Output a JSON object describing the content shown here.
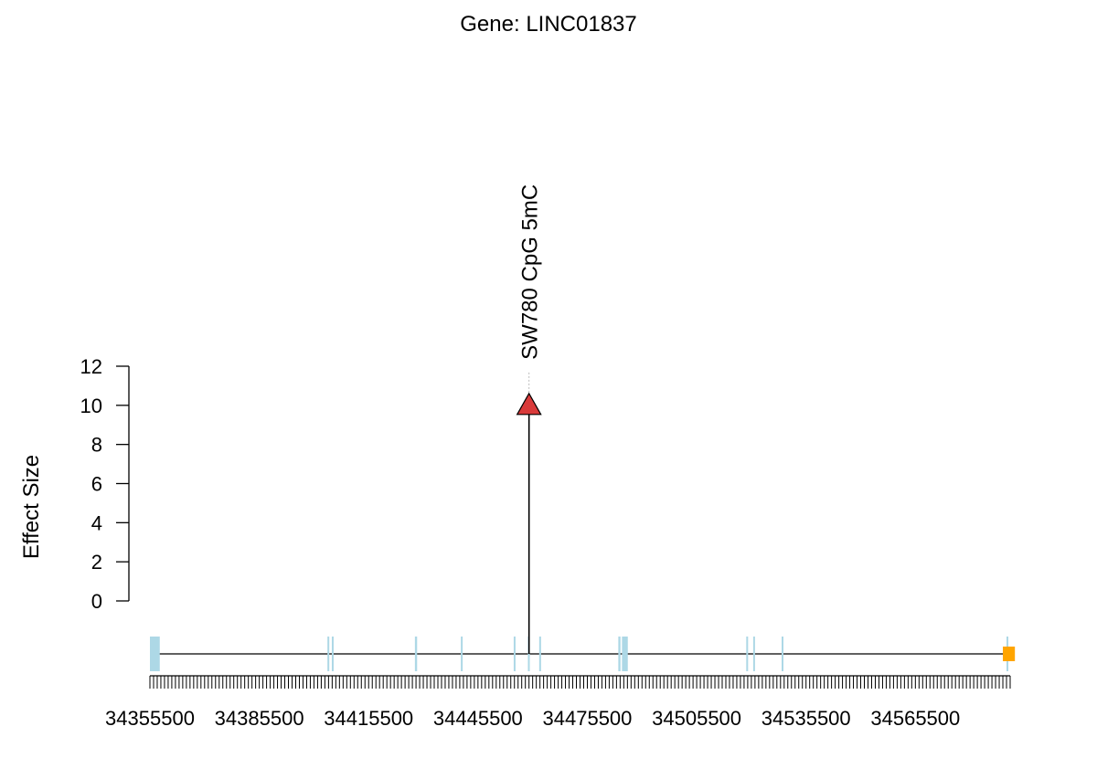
{
  "chart_data": {
    "type": "lollipop",
    "title": "Gene: LINC01837",
    "ylabel": "Effect Size",
    "xlabel": "",
    "ylim": [
      0,
      12
    ],
    "y_ticks": [
      0,
      2,
      4,
      6,
      8,
      10,
      12
    ],
    "xlim": [
      34355500,
      34591500
    ],
    "x_tick_labels": [
      34355500,
      34385500,
      34415500,
      34445500,
      34475500,
      34505500,
      34535500,
      34565500
    ],
    "minor_tick_step": 1000,
    "points": [
      {
        "x": 34459500,
        "y": 10,
        "label": "SW780 CpG 5mC",
        "marker": "triangle",
        "color": "#d93a3a"
      }
    ],
    "gene_track": {
      "start": 34355500,
      "end": 34591500,
      "exon_color": "#add8e6",
      "highlight_color": "#ffa500",
      "exons": [
        {
          "start": 34355500,
          "end": 34358200
        },
        {
          "start": 34404200,
          "end": 34404700
        },
        {
          "start": 34405400,
          "end": 34405900
        },
        {
          "start": 34428200,
          "end": 34428800
        },
        {
          "start": 34440800,
          "end": 34441200
        },
        {
          "start": 34455300,
          "end": 34455700
        },
        {
          "start": 34459200,
          "end": 34459700
        },
        {
          "start": 34462300,
          "end": 34462700
        },
        {
          "start": 34484000,
          "end": 34484600
        },
        {
          "start": 34485000,
          "end": 34486600
        },
        {
          "start": 34519100,
          "end": 34519500
        },
        {
          "start": 34521000,
          "end": 34521500
        },
        {
          "start": 34528800,
          "end": 34529200
        },
        {
          "start": 34590500,
          "end": 34591000
        }
      ],
      "highlights": [
        {
          "start": 34589500,
          "end": 34592800
        }
      ]
    }
  }
}
